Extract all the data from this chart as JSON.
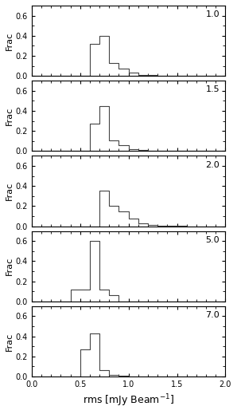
{
  "panels": [
    {
      "label": "1.0",
      "bin_edges": [
        0.0,
        0.1,
        0.2,
        0.3,
        0.4,
        0.5,
        0.6,
        0.7,
        0.8,
        0.9,
        1.0,
        1.1,
        1.2,
        1.3,
        1.4,
        1.5,
        1.6,
        1.7,
        1.8,
        1.9,
        2.0
      ],
      "values": [
        0.0,
        0.0,
        0.0,
        0.0,
        0.0,
        0.0,
        0.32,
        0.4,
        0.13,
        0.07,
        0.03,
        0.01,
        0.01,
        0.005,
        0.005,
        0.0,
        0.0,
        0.005,
        0.005,
        0.0
      ]
    },
    {
      "label": "1.5",
      "bin_edges": [
        0.0,
        0.1,
        0.2,
        0.3,
        0.4,
        0.5,
        0.6,
        0.7,
        0.8,
        0.9,
        1.0,
        1.1,
        1.2,
        1.3,
        1.4,
        1.5,
        1.6,
        1.7,
        1.8,
        1.9,
        2.0
      ],
      "values": [
        0.0,
        0.0,
        0.0,
        0.0,
        0.0,
        0.0,
        0.27,
        0.45,
        0.11,
        0.06,
        0.02,
        0.01,
        0.005,
        0.005,
        0.005,
        0.0,
        0.0,
        0.0,
        0.0,
        0.0
      ]
    },
    {
      "label": "2.0",
      "bin_edges": [
        0.0,
        0.1,
        0.2,
        0.3,
        0.4,
        0.5,
        0.6,
        0.7,
        0.8,
        0.9,
        1.0,
        1.1,
        1.2,
        1.3,
        1.4,
        1.5,
        1.6,
        1.7,
        1.8,
        1.9,
        2.0
      ],
      "values": [
        0.0,
        0.0,
        0.0,
        0.0,
        0.0,
        0.0,
        0.0,
        0.35,
        0.2,
        0.15,
        0.08,
        0.03,
        0.01,
        0.005,
        0.005,
        0.005,
        0.0,
        0.0,
        0.0,
        0.0
      ]
    },
    {
      "label": "5.0",
      "bin_edges": [
        0.0,
        0.1,
        0.2,
        0.3,
        0.4,
        0.5,
        0.6,
        0.7,
        0.8,
        0.9,
        1.0,
        1.1,
        1.2,
        1.3,
        1.4,
        1.5,
        1.6,
        1.7,
        1.8,
        1.9,
        2.0
      ],
      "values": [
        0.0,
        0.0,
        0.0,
        0.0,
        0.12,
        0.12,
        0.6,
        0.12,
        0.06,
        0.0,
        0.0,
        0.0,
        0.0,
        0.0,
        0.0,
        0.0,
        0.0,
        0.0,
        0.0,
        0.0
      ]
    },
    {
      "label": "7.0",
      "bin_edges": [
        0.0,
        0.1,
        0.2,
        0.3,
        0.4,
        0.5,
        0.6,
        0.7,
        0.8,
        0.9,
        1.0,
        1.1,
        1.2,
        1.3,
        1.4,
        1.5,
        1.6,
        1.7,
        1.8,
        1.9,
        2.0
      ],
      "values": [
        0.0,
        0.0,
        0.0,
        0.0,
        0.0,
        0.27,
        0.43,
        0.06,
        0.02,
        0.01,
        0.0,
        0.0,
        0.0,
        0.0,
        0.0,
        0.0,
        0.0,
        0.0,
        0.0,
        0.0
      ]
    }
  ],
  "xlim": [
    0,
    2
  ],
  "ylim": [
    0,
    0.7
  ],
  "xticks": [
    0,
    0.5,
    1.0,
    1.5,
    2.0
  ],
  "yticks": [
    0,
    0.2,
    0.4,
    0.6
  ],
  "xlabel": "rms [mJy Beam$^{-1}$]",
  "ylabel": "Frac",
  "line_color": "#444444",
  "bg_color": "#ffffff",
  "label_fontsize": 8,
  "tick_fontsize": 7,
  "axis_label_fontsize": 9
}
